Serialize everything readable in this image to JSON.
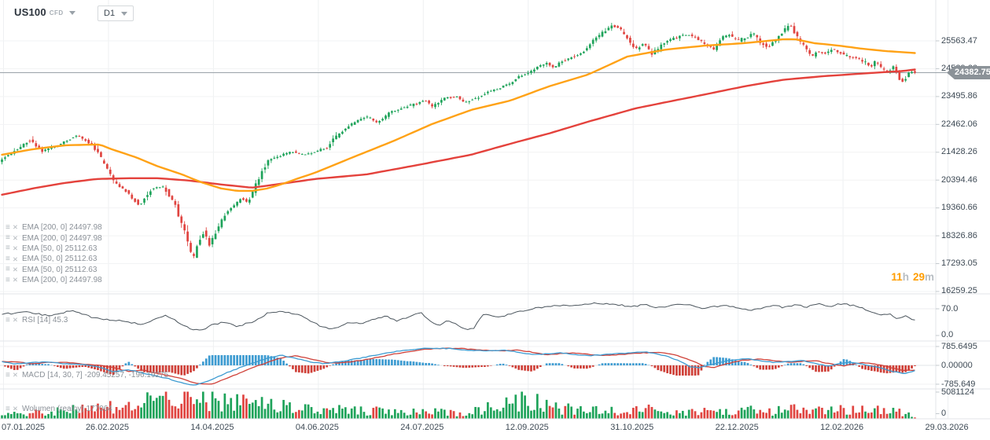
{
  "header": {
    "symbol": "US100",
    "instrument_type": "CFD",
    "timeframe": "D1"
  },
  "indicators_panel": {
    "ema_labels": [
      "EMA [200, 0] 24497.98",
      "EMA [200, 0] 24497.98",
      "EMA [50, 0] 25112.63",
      "EMA [50, 0] 25112.63",
      "EMA [50, 0] 25112.63",
      "EMA [200, 0] 24497.98"
    ],
    "rsi_label": "RSI [14] 45.3",
    "macd_label": "MACD [14, 30, 7] -209.45257, -196.19275",
    "volume_label": "Wolumen (realny) 177064"
  },
  "countdown": {
    "hours": "11",
    "hours_unit": "h",
    "minutes": "29",
    "minutes_unit": "m"
  },
  "price_badge": "24382.75",
  "axes": {
    "price_ticks": [
      "25563.47",
      "24529.66",
      "23495.86",
      "22462.06",
      "21428.26",
      "20394.46",
      "19360.66",
      "18326.86",
      "17293.05",
      "16259.25"
    ],
    "rsi_ticks": [
      "70.0",
      "0.0"
    ],
    "macd_ticks": [
      "785.6495",
      "0.00000",
      "-785.649"
    ],
    "volume_ticks": [
      "5081124",
      "0"
    ],
    "date_ticks": [
      "07.01.2025",
      "26.02.2025",
      "14.04.2025",
      "04.06.2025",
      "24.07.2025",
      "12.09.2025",
      "31.10.2025",
      "22.12.2025",
      "12.02.2026",
      "29.03.2026"
    ]
  },
  "chart_data": {
    "type": "candlestick",
    "instrument": "US100 CFD",
    "timeframe": "D1",
    "x_range": [
      "07.01.2025",
      "29.03.2026"
    ],
    "price_axis": {
      "ticks": [
        25563.47,
        24529.66,
        23495.86,
        22462.06,
        21428.26,
        20394.46,
        19360.66,
        18326.86,
        17293.05,
        16259.25
      ],
      "current_price": 24382.75
    },
    "price_path_keypoints": [
      [
        0,
        21104
      ],
      [
        0.013,
        21395
      ],
      [
        0.034,
        21891
      ],
      [
        0.047,
        21483
      ],
      [
        0.064,
        21687
      ],
      [
        0.086,
        22066
      ],
      [
        0.103,
        21687
      ],
      [
        0.116,
        20958
      ],
      [
        0.128,
        20230
      ],
      [
        0.141,
        19938
      ],
      [
        0.154,
        19443
      ],
      [
        0.167,
        20084
      ],
      [
        0.18,
        20171
      ],
      [
        0.193,
        19443
      ],
      [
        0.205,
        18335
      ],
      [
        0.212,
        17403
      ],
      [
        0.218,
        18044
      ],
      [
        0.224,
        18481
      ],
      [
        0.231,
        17986
      ],
      [
        0.24,
        18627
      ],
      [
        0.248,
        19151
      ],
      [
        0.257,
        19443
      ],
      [
        0.265,
        19734
      ],
      [
        0.272,
        19559
      ],
      [
        0.278,
        19938
      ],
      [
        0.287,
        20667
      ],
      [
        0.295,
        21104
      ],
      [
        0.308,
        21308
      ],
      [
        0.321,
        21454
      ],
      [
        0.334,
        21337
      ],
      [
        0.347,
        21454
      ],
      [
        0.36,
        21629
      ],
      [
        0.368,
        21950
      ],
      [
        0.377,
        22241
      ],
      [
        0.389,
        22533
      ],
      [
        0.402,
        22766
      ],
      [
        0.415,
        22533
      ],
      [
        0.428,
        22912
      ],
      [
        0.441,
        23058
      ],
      [
        0.454,
        23203
      ],
      [
        0.467,
        23349
      ],
      [
        0.475,
        23116
      ],
      [
        0.488,
        23437
      ],
      [
        0.501,
        23524
      ],
      [
        0.509,
        23262
      ],
      [
        0.522,
        23437
      ],
      [
        0.535,
        23641
      ],
      [
        0.548,
        23816
      ],
      [
        0.561,
        24020
      ],
      [
        0.569,
        24224
      ],
      [
        0.582,
        24399
      ],
      [
        0.591,
        24603
      ],
      [
        0.599,
        24749
      ],
      [
        0.608,
        24574
      ],
      [
        0.616,
        24807
      ],
      [
        0.629,
        24982
      ],
      [
        0.642,
        25186
      ],
      [
        0.652,
        25622
      ],
      [
        0.663,
        25913
      ],
      [
        0.672,
        26147
      ],
      [
        0.681,
        25972
      ],
      [
        0.689,
        25622
      ],
      [
        0.698,
        25272
      ],
      [
        0.706,
        25476
      ],
      [
        0.715,
        25097
      ],
      [
        0.723,
        25330
      ],
      [
        0.732,
        25563
      ],
      [
        0.741,
        25680
      ],
      [
        0.749,
        25767
      ],
      [
        0.758,
        25767
      ],
      [
        0.766,
        25622
      ],
      [
        0.775,
        25389
      ],
      [
        0.783,
        25272
      ],
      [
        0.792,
        25680
      ],
      [
        0.8,
        25767
      ],
      [
        0.809,
        25563
      ],
      [
        0.818,
        25680
      ],
      [
        0.826,
        25855
      ],
      [
        0.835,
        25476
      ],
      [
        0.843,
        25330
      ],
      [
        0.852,
        25622
      ],
      [
        0.86,
        25972
      ],
      [
        0.866,
        26205
      ],
      [
        0.873,
        25767
      ],
      [
        0.882,
        25330
      ],
      [
        0.89,
        24982
      ],
      [
        0.897,
        25186
      ],
      [
        0.906,
        25097
      ],
      [
        0.912,
        25272
      ],
      [
        0.918,
        25186
      ],
      [
        0.925,
        25039
      ],
      [
        0.933,
        24982
      ],
      [
        0.942,
        24895
      ],
      [
        0.949,
        24749
      ],
      [
        0.955,
        24603
      ],
      [
        0.961,
        24807
      ],
      [
        0.967,
        24516
      ],
      [
        0.974,
        24399
      ],
      [
        0.98,
        24603
      ],
      [
        0.986,
        24166
      ],
      [
        0.991,
        24020
      ],
      [
        0.997,
        24399
      ],
      [
        1,
        24382.75
      ]
    ],
    "ema50": {
      "period": 50,
      "current": 25112.63,
      "color": "#ffa216",
      "keypoints": [
        [
          0,
          21337
        ],
        [
          0.034,
          21541
        ],
        [
          0.069,
          21687
        ],
        [
          0.107,
          21716
        ],
        [
          0.12,
          21541
        ],
        [
          0.146,
          21250
        ],
        [
          0.171,
          20900
        ],
        [
          0.197,
          20608
        ],
        [
          0.218,
          20317
        ],
        [
          0.24,
          20084
        ],
        [
          0.257,
          19996
        ],
        [
          0.274,
          19996
        ],
        [
          0.291,
          20084
        ],
        [
          0.308,
          20259
        ],
        [
          0.325,
          20463
        ],
        [
          0.343,
          20667
        ],
        [
          0.385,
          21250
        ],
        [
          0.428,
          21833
        ],
        [
          0.471,
          22474
        ],
        [
          0.514,
          22999
        ],
        [
          0.557,
          23349
        ],
        [
          0.599,
          23873
        ],
        [
          0.642,
          24311
        ],
        [
          0.685,
          24981
        ],
        [
          0.728,
          25243
        ],
        [
          0.771,
          25389
        ],
        [
          0.813,
          25477
        ],
        [
          0.856,
          25622
        ],
        [
          0.869,
          25622
        ],
        [
          0.89,
          25476
        ],
        [
          0.916,
          25389
        ],
        [
          0.942,
          25272
        ],
        [
          0.968,
          25184
        ],
        [
          1,
          25112.63
        ]
      ]
    },
    "ema200": {
      "period": 200,
      "current": 24497.98,
      "color": "#e4423c",
      "keypoints": [
        [
          0,
          19851
        ],
        [
          0.034,
          20084
        ],
        [
          0.069,
          20288
        ],
        [
          0.103,
          20434
        ],
        [
          0.137,
          20463
        ],
        [
          0.171,
          20463
        ],
        [
          0.206,
          20375
        ],
        [
          0.24,
          20230
        ],
        [
          0.274,
          20113
        ],
        [
          0.3,
          20230
        ],
        [
          0.343,
          20434
        ],
        [
          0.4,
          20609
        ],
        [
          0.456,
          20958
        ],
        [
          0.514,
          21337
        ],
        [
          0.557,
          21745
        ],
        [
          0.599,
          22124
        ],
        [
          0.642,
          22561
        ],
        [
          0.694,
          23057
        ],
        [
          0.728,
          23290
        ],
        [
          0.771,
          23582
        ],
        [
          0.813,
          23873
        ],
        [
          0.856,
          24120
        ],
        [
          0.899,
          24250
        ],
        [
          0.942,
          24350
        ],
        [
          0.985,
          24440
        ],
        [
          1,
          24497.98
        ]
      ]
    },
    "rsi": {
      "period": 14,
      "current": 45.3,
      "ticks": [
        70,
        0
      ],
      "keypoints": [
        [
          0,
          58
        ],
        [
          0.026,
          63
        ],
        [
          0.051,
          55
        ],
        [
          0.077,
          66
        ],
        [
          0.103,
          49
        ],
        [
          0.128,
          44
        ],
        [
          0.154,
          37
        ],
        [
          0.18,
          56
        ],
        [
          0.205,
          27
        ],
        [
          0.218,
          23
        ],
        [
          0.231,
          36
        ],
        [
          0.244,
          41
        ],
        [
          0.257,
          32
        ],
        [
          0.274,
          41
        ],
        [
          0.291,
          60
        ],
        [
          0.308,
          64
        ],
        [
          0.325,
          57
        ],
        [
          0.338,
          44
        ],
        [
          0.351,
          30
        ],
        [
          0.364,
          26
        ],
        [
          0.381,
          41
        ],
        [
          0.394,
          38
        ],
        [
          0.407,
          46
        ],
        [
          0.42,
          55
        ],
        [
          0.433,
          44
        ],
        [
          0.445,
          51
        ],
        [
          0.458,
          63
        ],
        [
          0.471,
          41
        ],
        [
          0.479,
          33
        ],
        [
          0.488,
          44
        ],
        [
          0.496,
          38
        ],
        [
          0.509,
          25
        ],
        [
          0.517,
          27
        ],
        [
          0.526,
          57
        ],
        [
          0.538,
          55
        ],
        [
          0.547,
          53
        ],
        [
          0.559,
          61
        ],
        [
          0.572,
          66
        ],
        [
          0.585,
          72
        ],
        [
          0.602,
          75
        ],
        [
          0.615,
          78
        ],
        [
          0.627,
          76
        ],
        [
          0.64,
          80
        ],
        [
          0.653,
          82
        ],
        [
          0.666,
          80
        ],
        [
          0.678,
          78
        ],
        [
          0.691,
          74
        ],
        [
          0.704,
          80
        ],
        [
          0.717,
          72
        ],
        [
          0.729,
          76
        ],
        [
          0.742,
          79
        ],
        [
          0.755,
          77
        ],
        [
          0.768,
          71
        ],
        [
          0.781,
          75
        ],
        [
          0.793,
          78
        ],
        [
          0.806,
          71
        ],
        [
          0.819,
          67
        ],
        [
          0.832,
          71
        ],
        [
          0.844,
          77
        ],
        [
          0.857,
          73
        ],
        [
          0.87,
          78
        ],
        [
          0.882,
          74
        ],
        [
          0.895,
          80
        ],
        [
          0.908,
          76
        ],
        [
          0.92,
          81
        ],
        [
          0.933,
          77
        ],
        [
          0.946,
          69
        ],
        [
          0.955,
          61
        ],
        [
          0.963,
          55
        ],
        [
          0.971,
          60
        ],
        [
          0.98,
          50
        ],
        [
          0.989,
          54
        ],
        [
          1,
          45.3
        ]
      ]
    },
    "macd": {
      "params": [
        14,
        30,
        7
      ],
      "macd_current": -209.45257,
      "signal_current": -196.19275,
      "axis": [
        785.6495,
        0,
        -785.649
      ],
      "keypoints": [
        [
          0,
          160
        ],
        [
          0.015,
          60
        ],
        [
          0.031,
          110
        ],
        [
          0.051,
          140
        ],
        [
          0.071,
          60
        ],
        [
          0.092,
          20
        ],
        [
          0.107,
          -80
        ],
        [
          0.122,
          -260
        ],
        [
          0.138,
          -180
        ],
        [
          0.153,
          -300
        ],
        [
          0.168,
          -440
        ],
        [
          0.183,
          -560
        ],
        [
          0.199,
          -760
        ],
        [
          0.212,
          -818
        ],
        [
          0.229,
          -600
        ],
        [
          0.25,
          -250
        ],
        [
          0.27,
          40
        ],
        [
          0.29,
          290
        ],
        [
          0.306,
          420
        ],
        [
          0.321,
          300
        ],
        [
          0.336,
          150
        ],
        [
          0.352,
          80
        ],
        [
          0.367,
          140
        ],
        [
          0.387,
          260
        ],
        [
          0.408,
          420
        ],
        [
          0.428,
          560
        ],
        [
          0.448,
          660
        ],
        [
          0.469,
          720
        ],
        [
          0.489,
          700
        ],
        [
          0.509,
          640
        ],
        [
          0.53,
          600
        ],
        [
          0.55,
          640
        ],
        [
          0.565,
          560
        ],
        [
          0.581,
          440
        ],
        [
          0.596,
          480
        ],
        [
          0.611,
          520
        ],
        [
          0.627,
          460
        ],
        [
          0.642,
          400
        ],
        [
          0.657,
          440
        ],
        [
          0.672,
          480
        ],
        [
          0.688,
          520
        ],
        [
          0.703,
          560
        ],
        [
          0.713,
          520
        ],
        [
          0.728,
          380
        ],
        [
          0.744,
          160
        ],
        [
          0.754,
          -60
        ],
        [
          0.764,
          -95
        ],
        [
          0.779,
          60
        ],
        [
          0.795,
          200
        ],
        [
          0.815,
          280
        ],
        [
          0.83,
          200
        ],
        [
          0.846,
          120
        ],
        [
          0.861,
          160
        ],
        [
          0.876,
          200
        ],
        [
          0.886,
          120
        ],
        [
          0.896,
          40
        ],
        [
          0.906,
          -30
        ],
        [
          0.917,
          60
        ],
        [
          0.927,
          120
        ],
        [
          0.937,
          80
        ],
        [
          0.947,
          20
        ],
        [
          0.957,
          -60
        ],
        [
          0.967,
          -160
        ],
        [
          0.977,
          -260
        ],
        [
          0.988,
          -340
        ],
        [
          0.994,
          -300
        ],
        [
          1,
          -209.45257
        ]
      ]
    },
    "volume": {
      "current": 177064,
      "axis_max": 5081124,
      "profile_keypoints": [
        [
          0,
          0.2
        ],
        [
          0.05,
          0.25
        ],
        [
          0.1,
          0.35
        ],
        [
          0.13,
          0.5
        ],
        [
          0.16,
          0.6
        ],
        [
          0.19,
          0.8
        ],
        [
          0.21,
          1
        ],
        [
          0.23,
          0.7
        ],
        [
          0.26,
          0.55
        ],
        [
          0.3,
          0.45
        ],
        [
          0.35,
          0.35
        ],
        [
          0.4,
          0.28
        ],
        [
          0.45,
          0.24
        ],
        [
          0.5,
          0.22
        ],
        [
          0.55,
          0.45
        ],
        [
          0.57,
          0.75
        ],
        [
          0.6,
          0.4
        ],
        [
          0.65,
          0.3
        ],
        [
          0.7,
          0.32
        ],
        [
          0.75,
          0.28
        ],
        [
          0.8,
          0.3
        ],
        [
          0.85,
          0.28
        ],
        [
          0.88,
          0.35
        ],
        [
          0.9,
          0.3
        ],
        [
          0.93,
          0.32
        ],
        [
          0.96,
          0.3
        ],
        [
          0.99,
          0.2
        ],
        [
          1,
          0.06
        ]
      ]
    },
    "colors": {
      "up": "#1ea35a",
      "down": "#e04440",
      "macd_line": "#3d9bd1",
      "signal_line": "#cf4038",
      "hist_pos": "#3d9bd1",
      "hist_neg": "#cf4038",
      "rsi_line": "#4b555d",
      "price_line": "#9aa2a9",
      "ema50": "#ffa216",
      "ema200": "#e4423c",
      "badge_bg": "#8b9298",
      "countdown": "#ff9d00"
    }
  }
}
